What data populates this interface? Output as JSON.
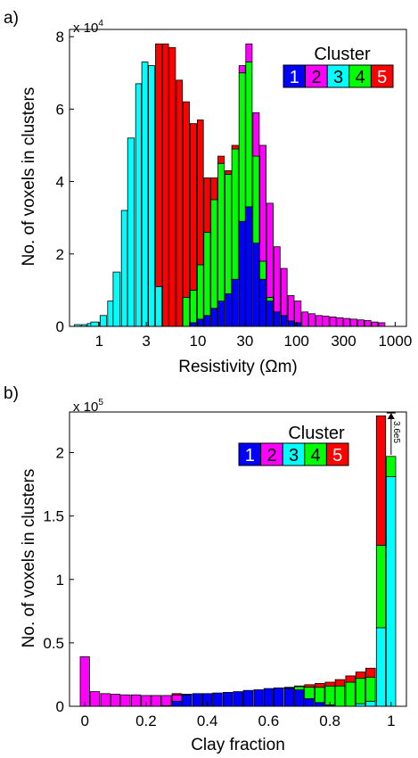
{
  "colors": {
    "c1": "#0000ff",
    "c2": "#ff00ff",
    "c3": "#00ffff",
    "c4": "#00ff00",
    "c5": "#ff0000"
  },
  "chart_data": [
    {
      "panel_label": "a)",
      "type": "bar",
      "stacked": true,
      "multiplier_label": "x 10",
      "multiplier_exponent": "4",
      "xlabel": "Resistivity (Ωm)",
      "ylabel": "No. of voxels in clusters",
      "x_scale": "log",
      "xlim": [
        0.5,
        1300
      ],
      "ylim": [
        0,
        8.2
      ],
      "x_ticks": [
        1,
        3,
        10,
        30,
        100,
        300,
        1000
      ],
      "x_tick_labels": [
        "1",
        "3",
        "10",
        "30",
        "100",
        "300",
        "1000"
      ],
      "y_ticks": [
        0,
        2,
        4,
        6,
        8
      ],
      "y_tick_labels": [
        "0",
        "2",
        "4",
        "6",
        "8"
      ],
      "legend": {
        "title": "Cluster",
        "items": [
          "1",
          "2",
          "3",
          "4",
          "5"
        ],
        "placement": "top-right"
      },
      "x": [
        0.6,
        0.7,
        0.8,
        0.9,
        1.1,
        1.3,
        1.5,
        1.8,
        2.1,
        2.5,
        2.9,
        3.4,
        4.0,
        4.7,
        5.5,
        6.5,
        7.6,
        9.0,
        10.6,
        12.4,
        14.6,
        17.2,
        20.3,
        23.8,
        28.1,
        33.0,
        38.9,
        45.8,
        53.9,
        63.4,
        74.7,
        87.9,
        103,
        122,
        143,
        169,
        198,
        234,
        275,
        324,
        381,
        449,
        528,
        622,
        732
      ],
      "series": [
        {
          "name": "1",
          "values": [
            0,
            0,
            0,
            0,
            0,
            0,
            0,
            0,
            0,
            0,
            0,
            0,
            0,
            0,
            0,
            0,
            0,
            0.1,
            0.2,
            0.3,
            0.5,
            0.7,
            0.9,
            1.3,
            2.9,
            3.3,
            2.3,
            1.3,
            0.7,
            0.4,
            0.3,
            0.15,
            0.1,
            0,
            0,
            0,
            0,
            0,
            0,
            0,
            0,
            0,
            0,
            0,
            0
          ]
        },
        {
          "name": "2",
          "values": [
            0,
            0,
            0,
            0,
            0,
            0,
            0,
            0,
            0,
            0,
            0,
            0,
            0,
            0,
            0,
            0,
            0,
            0,
            0,
            0,
            0,
            0,
            0,
            0,
            0.2,
            0.5,
            1.2,
            3.2,
            2.6,
            1.8,
            1.3,
            0.7,
            0.6,
            0.4,
            0.35,
            0.3,
            0.28,
            0.26,
            0.24,
            0.22,
            0.2,
            0.18,
            0.16,
            0.12,
            0.1
          ]
        },
        {
          "name": "3",
          "values": [
            0.05,
            0.05,
            0.08,
            0.12,
            0.3,
            0.7,
            1.5,
            3.2,
            5.2,
            6.7,
            7.3,
            7.2,
            1.1,
            0,
            0,
            0,
            0,
            0,
            0,
            0,
            0,
            0,
            0,
            0,
            0,
            0,
            0,
            0,
            0,
            0,
            0,
            0,
            0,
            0,
            0,
            0,
            0,
            0,
            0,
            0,
            0,
            0,
            0,
            0,
            0
          ]
        },
        {
          "name": "4",
          "values": [
            0,
            0,
            0,
            0,
            0,
            0,
            0,
            0,
            0,
            0,
            0,
            0,
            0,
            0,
            0,
            0,
            0.8,
            0.9,
            1.5,
            2.3,
            3.0,
            3.8,
            3.3,
            3.6,
            4.1,
            4.0,
            2.4,
            0.5,
            0.1,
            0,
            0,
            0,
            0,
            0,
            0,
            0,
            0,
            0,
            0,
            0,
            0,
            0,
            0,
            0,
            0
          ]
        },
        {
          "name": "5",
          "values": [
            0,
            0,
            0,
            0,
            0,
            0,
            0,
            0,
            0,
            0,
            0,
            0,
            6.7,
            7.8,
            7.7,
            6.8,
            5.4,
            4.6,
            4.0,
            1.5,
            0.6,
            0.2,
            0.1,
            0.1,
            0,
            0,
            0,
            0,
            0,
            0,
            0,
            0,
            0,
            0,
            0,
            0,
            0,
            0,
            0,
            0,
            0,
            0,
            0,
            0,
            0
          ]
        }
      ]
    },
    {
      "panel_label": "b)",
      "type": "bar",
      "stacked": true,
      "multiplier_label": "x 10",
      "multiplier_exponent": "5",
      "xlabel": "Clay fraction",
      "ylabel": "No. of voxels in clusters",
      "xlim": [
        -0.05,
        1.05
      ],
      "ylim": [
        0,
        2.32
      ],
      "x_ticks": [
        0,
        0.2,
        0.4,
        0.6,
        0.8,
        1
      ],
      "x_tick_labels": [
        "0",
        "0.2",
        "0.4",
        "0.6",
        "0.8",
        "1"
      ],
      "y_ticks": [
        0,
        0.5,
        1,
        1.5,
        2
      ],
      "y_tick_labels": [
        "0",
        "0.5",
        "1",
        "1.5",
        "2"
      ],
      "legend": {
        "title": "Cluster",
        "items": [
          "1",
          "2",
          "3",
          "4",
          "5"
        ],
        "placement": "top-right"
      },
      "annotation": {
        "text": "3.6e5",
        "x": 1.0
      },
      "x": [
        0.0,
        0.033,
        0.067,
        0.1,
        0.133,
        0.167,
        0.2,
        0.233,
        0.267,
        0.3,
        0.333,
        0.367,
        0.4,
        0.433,
        0.467,
        0.5,
        0.533,
        0.567,
        0.6,
        0.633,
        0.667,
        0.7,
        0.733,
        0.767,
        0.8,
        0.833,
        0.867,
        0.9,
        0.933,
        0.967,
        1.0
      ],
      "series": [
        {
          "name": "1",
          "values": [
            0,
            0,
            0,
            0,
            0,
            0,
            0,
            0,
            0.005,
            0.04,
            0.09,
            0.1,
            0.1,
            0.105,
            0.11,
            0.115,
            0.125,
            0.13,
            0.14,
            0.145,
            0.14,
            0.13,
            0.06,
            0.03,
            0.01,
            0,
            0,
            0,
            0,
            0,
            0
          ]
        },
        {
          "name": "2",
          "values": [
            0.39,
            0.115,
            0.1,
            0.095,
            0.09,
            0.09,
            0.085,
            0.085,
            0.08,
            0.05,
            0,
            0,
            0,
            0,
            0,
            0,
            0,
            0,
            0,
            0,
            0,
            0,
            0,
            0,
            0,
            0,
            0,
            0,
            0,
            0,
            0
          ]
        },
        {
          "name": "3",
          "values": [
            0,
            0,
            0,
            0,
            0,
            0,
            0,
            0,
            0,
            0,
            0,
            0,
            0,
            0,
            0,
            0,
            0,
            0,
            0,
            0,
            0,
            0,
            0,
            0,
            0,
            0,
            0,
            0.02,
            0.04,
            0.62,
            1.81
          ]
        },
        {
          "name": "4",
          "values": [
            0,
            0,
            0,
            0,
            0,
            0,
            0,
            0,
            0,
            0,
            0,
            0,
            0,
            0,
            0,
            0,
            0,
            0,
            0,
            0,
            0.005,
            0.025,
            0.09,
            0.12,
            0.15,
            0.16,
            0.19,
            0.2,
            0.19,
            0.65,
            0.16
          ]
        },
        {
          "name": "5",
          "values": [
            0,
            0,
            0,
            0,
            0,
            0,
            0,
            0,
            0,
            0.01,
            0.005,
            0,
            0,
            0,
            0,
            0,
            0,
            0,
            0,
            0,
            0.005,
            0.005,
            0.02,
            0.03,
            0.03,
            0.05,
            0.05,
            0.05,
            0.07,
            1.02,
            0
          ]
        }
      ]
    }
  ]
}
